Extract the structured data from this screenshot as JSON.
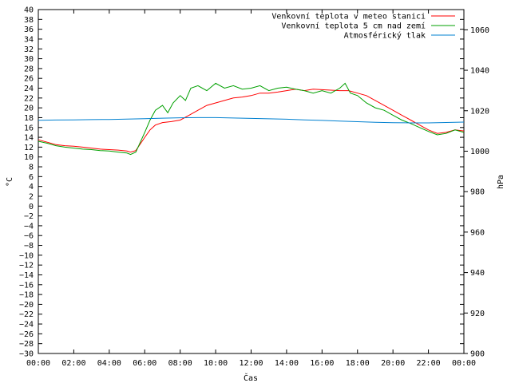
{
  "chart_data": {
    "type": "line",
    "xlabel": "Čas",
    "ylabel_left": "°C",
    "ylabel_right": "hPa",
    "x_ticks": [
      "00:00",
      "02:00",
      "04:00",
      "06:00",
      "08:00",
      "10:00",
      "12:00",
      "14:00",
      "16:00",
      "18:00",
      "20:00",
      "22:00",
      "00:00"
    ],
    "x_range_hours": [
      0,
      24
    ],
    "ylim_left": [
      -30,
      40
    ],
    "y_ticks_left": [
      -30,
      -28,
      -26,
      -24,
      -22,
      -20,
      -18,
      -16,
      -14,
      -12,
      -10,
      -8,
      -6,
      -4,
      -2,
      0,
      2,
      4,
      6,
      8,
      10,
      12,
      14,
      16,
      18,
      20,
      22,
      24,
      26,
      28,
      30,
      32,
      34,
      36,
      38,
      40
    ],
    "ylim_right": [
      900,
      1070
    ],
    "y_ticks_right": [
      900,
      920,
      940,
      960,
      980,
      1000,
      1020,
      1040,
      1060
    ],
    "grid": false,
    "legend_position": "top-right",
    "series": [
      {
        "name": "Venkovní teplota v meteo stanici",
        "axis": "left",
        "color": "#ff0000",
        "x": [
          0,
          0.5,
          1,
          1.5,
          2,
          2.5,
          3,
          3.5,
          4,
          4.5,
          5,
          5.2,
          5.5,
          6,
          6.3,
          6.6,
          7,
          7.5,
          8,
          8.5,
          9,
          9.5,
          10,
          10.5,
          11,
          11.5,
          12,
          12.5,
          13,
          13.5,
          14,
          14.5,
          15,
          15.5,
          16,
          16.5,
          17,
          17.5,
          18,
          18.5,
          19,
          19.5,
          20,
          20.5,
          21,
          21.5,
          22,
          22.5,
          23,
          23.5,
          24
        ],
        "y": [
          13.5,
          13,
          12.5,
          12.3,
          12.2,
          12,
          11.8,
          11.6,
          11.5,
          11.4,
          11.2,
          11,
          11.3,
          14,
          15.5,
          16.5,
          17,
          17.2,
          17.5,
          18.5,
          19.5,
          20.5,
          21,
          21.5,
          22,
          22.2,
          22.5,
          23,
          23,
          23.2,
          23.5,
          23.8,
          23.5,
          23.8,
          23.7,
          23.6,
          23.5,
          23.5,
          23,
          22.5,
          21.5,
          20.5,
          19.5,
          18.5,
          17.5,
          16.5,
          15.5,
          14.8,
          15,
          15.5,
          15.3
        ]
      },
      {
        "name": "Venkovní teplota 5 cm nad zemí",
        "axis": "left",
        "color": "#00a000",
        "x": [
          0,
          0.5,
          1,
          1.5,
          2,
          2.5,
          3,
          3.5,
          4,
          4.5,
          5,
          5.2,
          5.5,
          6,
          6.3,
          6.6,
          7,
          7.3,
          7.6,
          8,
          8.3,
          8.6,
          9,
          9.5,
          10,
          10.5,
          11,
          11.5,
          12,
          12.5,
          13,
          13.5,
          14,
          14.5,
          15,
          15.5,
          16,
          16.5,
          17,
          17.3,
          17.6,
          18,
          18.5,
          19,
          19.5,
          20,
          20.5,
          21,
          21.5,
          22,
          22.5,
          23,
          23.5,
          24
        ],
        "y": [
          13.2,
          12.8,
          12.3,
          12,
          11.8,
          11.6,
          11.5,
          11.3,
          11.2,
          11,
          10.8,
          10.5,
          11,
          15,
          17.5,
          19.5,
          20.5,
          19,
          21,
          22.5,
          21.5,
          24,
          24.5,
          23.5,
          25,
          24,
          24.5,
          23.8,
          24,
          24.5,
          23.5,
          24,
          24.2,
          23.8,
          23.5,
          23,
          23.5,
          23,
          24,
          25,
          23,
          22.5,
          21,
          20,
          19.5,
          18.5,
          17.5,
          16.8,
          16,
          15.2,
          14.5,
          14.8,
          15.5,
          15
        ]
      },
      {
        "name": "Atmosférický tlak",
        "axis": "right",
        "color": "#0080d0",
        "x": [
          0,
          1,
          2,
          3,
          4,
          5,
          6,
          7,
          8,
          9,
          10,
          11,
          12,
          13,
          14,
          15,
          16,
          17,
          18,
          19,
          20,
          21,
          22,
          23,
          24
        ],
        "y": [
          1015.3,
          1015.4,
          1015.5,
          1015.6,
          1015.7,
          1015.9,
          1016.1,
          1016.3,
          1016.5,
          1016.6,
          1016.6,
          1016.4,
          1016.2,
          1016,
          1015.8,
          1015.5,
          1015.2,
          1014.9,
          1014.6,
          1014.3,
          1014.1,
          1014,
          1014,
          1014.2,
          1014.4
        ]
      }
    ]
  }
}
